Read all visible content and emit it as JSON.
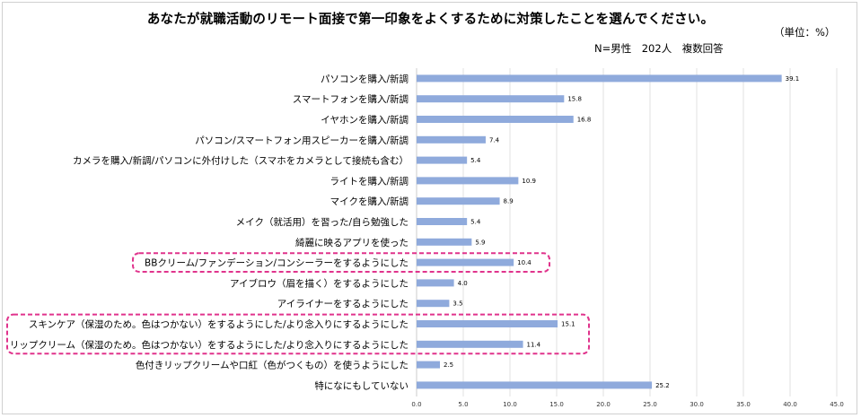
{
  "chart_data": {
    "type": "bar",
    "orientation": "horizontal",
    "title": "あなたが就職活動のリモート面接で第一印象をよくするために対策したことを選んでください。",
    "subtitle": "N=男性　202人　複数回答",
    "unit_label": "（単位：%）",
    "categories": [
      "パソコンを購入/新調",
      "スマートフォンを購入/新調",
      "イヤホンを購入/新調",
      "パソコン/スマートフォン用スピーカーを購入/新調",
      "カメラを購入/新調/パソコンに外付けした（スマホをカメラとして接続も含む）",
      "ライトを購入/新調",
      "マイクを購入/新調",
      "メイク（就活用）を習った/自ら勉強した",
      "綺麗に映るアプリを使った",
      "BBクリーム/ファンデーション/コンシーラーをするようにした",
      "アイブロウ（眉を描く）をするようにした",
      "アイライナーをするようにした",
      "スキンケア（保湿のため。色はつかない）をするようにした/より念入りにするようにした",
      "リップクリーム（保湿のため。色はつかない）をするようにした/より念入りにするようにした",
      "色付きリップクリームや口紅（色がつくもの）を使うようにした",
      "特になにもしていない"
    ],
    "values": [
      39.1,
      15.8,
      16.8,
      7.4,
      5.4,
      10.9,
      8.9,
      5.4,
      5.9,
      10.4,
      4.0,
      3.5,
      15.1,
      11.4,
      2.5,
      25.2
    ],
    "value_labels": [
      "39.1",
      "15.8",
      "16.8",
      "7.4",
      "5.4",
      "10.9",
      "8.9",
      "5.4",
      "5.9",
      "10.4",
      "4.0",
      "3.5",
      "15.1",
      "11.4",
      "2.5",
      "25.2"
    ],
    "xlim": [
      0,
      45
    ],
    "x_ticks": [
      "0.0",
      "5.0",
      "10.0",
      "15.0",
      "20.0",
      "25.0",
      "30.0",
      "35.0",
      "40.0",
      "45.0"
    ],
    "grid": "vertical",
    "legend": "none",
    "highlighted_groups": [
      [
        9
      ],
      [
        12,
        13
      ]
    ],
    "colors": {
      "bar": "#8faadc",
      "grid": "#d9d9d9",
      "highlight": "#e0338c",
      "axis": "#bfbfbf"
    }
  }
}
